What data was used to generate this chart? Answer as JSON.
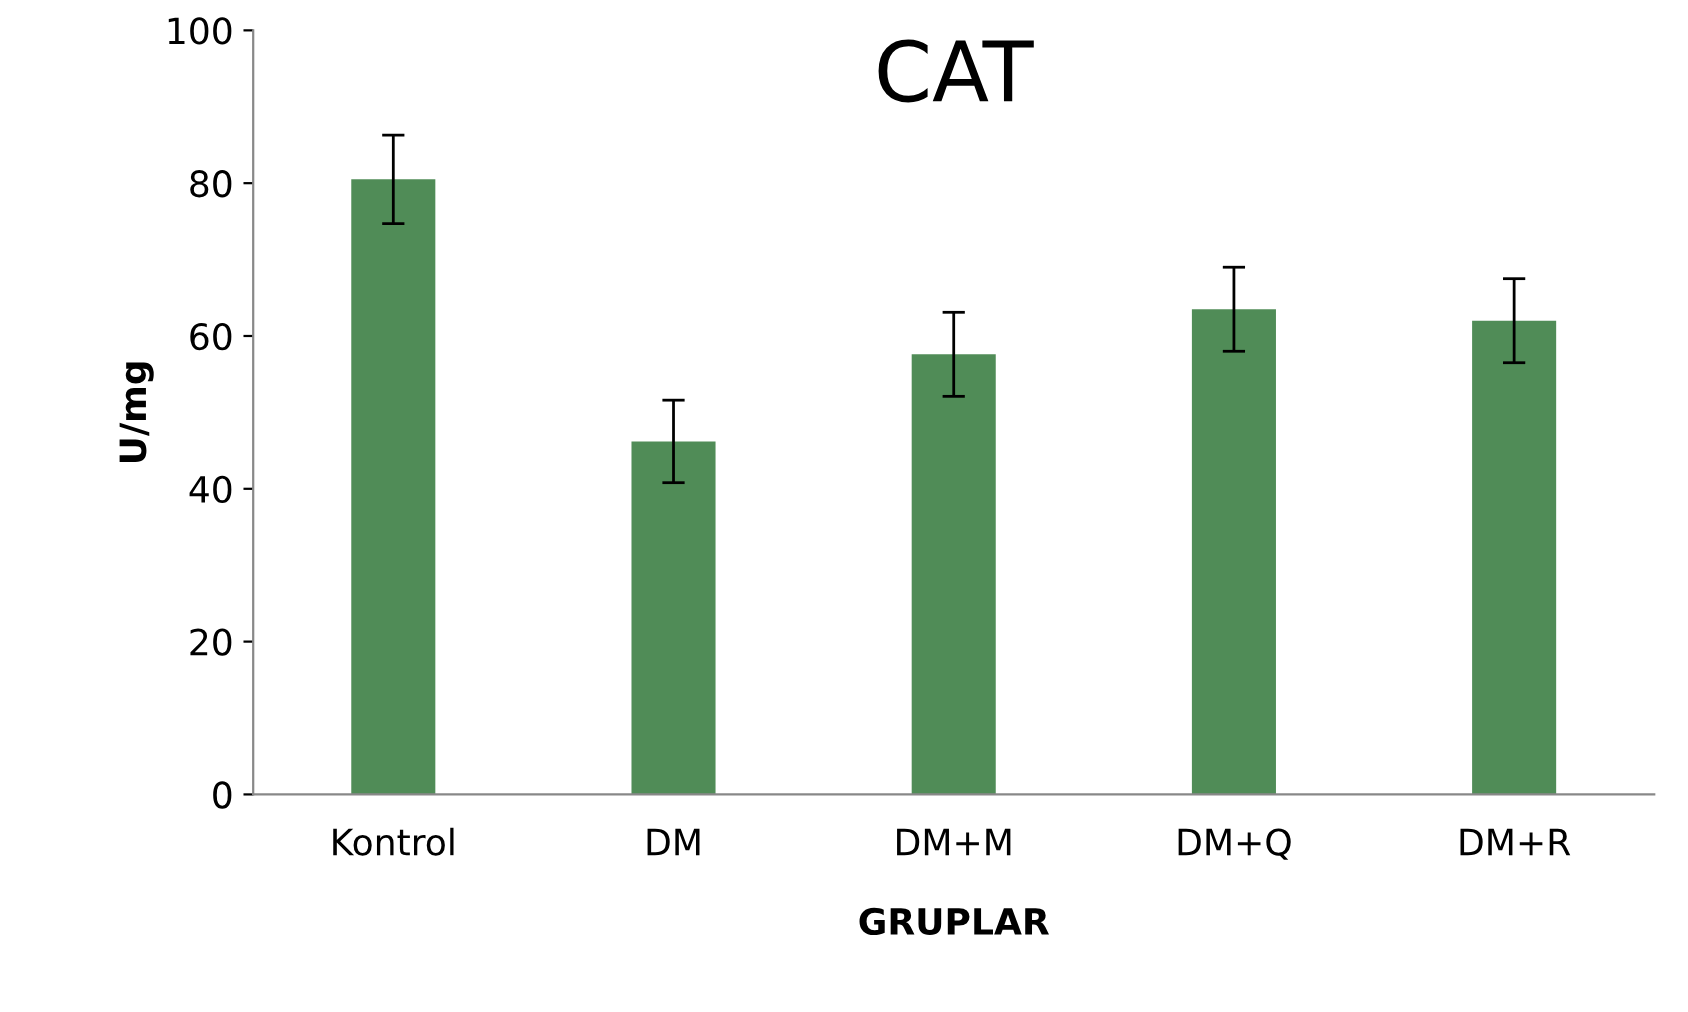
{
  "chart_data": {
    "type": "bar",
    "title": "CAT",
    "xlabel": "GRUPLAR",
    "ylabel": "U/mg",
    "categories": [
      "Kontrol",
      "DM",
      "DM+M",
      "DM+Q",
      "DM+R"
    ],
    "values": [
      80.5,
      46.2,
      57.6,
      63.5,
      62.0
    ],
    "errors": [
      5.8,
      5.4,
      5.5,
      5.5,
      5.5
    ],
    "color": "#508c57",
    "ylim": [
      0,
      100
    ],
    "yticks": [
      0,
      20,
      40,
      60,
      80,
      100
    ],
    "grid": false,
    "legend": false
  }
}
